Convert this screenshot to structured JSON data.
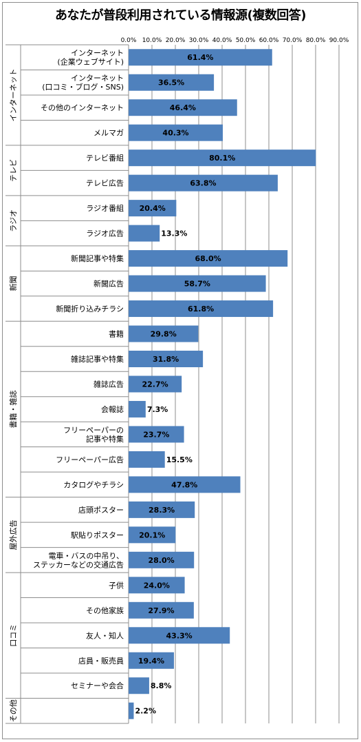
{
  "chart_data": {
    "type": "bar",
    "orientation": "horizontal",
    "title": "あなたが普段利用されている情報源(複数回答)",
    "xlim": [
      0,
      90
    ],
    "x_ticks": [
      "0.0%",
      "10.0%",
      "20.0%",
      "30.0%",
      "40.0%",
      "50.0%",
      "60.0%",
      "70.0%",
      "80.0%",
      "90.0%"
    ],
    "bar_color": "#4f81bd",
    "groups": [
      {
        "name": "インターネット",
        "start": 0,
        "count": 4
      },
      {
        "name": "テレビ",
        "start": 4,
        "count": 2
      },
      {
        "name": "ラジオ",
        "start": 6,
        "count": 2
      },
      {
        "name": "新聞",
        "start": 8,
        "count": 3
      },
      {
        "name": "書籍・雑誌",
        "start": 11,
        "count": 7
      },
      {
        "name": "屋外広告",
        "start": 18,
        "count": 3
      },
      {
        "name": "口コミ",
        "start": 21,
        "count": 5
      },
      {
        "name": "その他",
        "start": 26,
        "count": 1
      }
    ],
    "categories": [
      [
        "インターネット",
        "(企業ウェブサイト)"
      ],
      [
        "インターネット",
        "(口コミ・ブログ・SNS)"
      ],
      [
        "その他のインターネット"
      ],
      [
        "メルマガ"
      ],
      [
        "テレビ番組"
      ],
      [
        "テレビ広告"
      ],
      [
        "ラジオ番組"
      ],
      [
        "ラジオ広告"
      ],
      [
        "新聞記事や特集"
      ],
      [
        "新聞広告"
      ],
      [
        "新聞折り込みチラシ"
      ],
      [
        "書籍"
      ],
      [
        "雑誌記事や特集"
      ],
      [
        "雑誌広告"
      ],
      [
        "会報誌"
      ],
      [
        "フリーペーパーの",
        "記事や特集"
      ],
      [
        "フリーペーパー広告"
      ],
      [
        "カタログやチラシ"
      ],
      [
        "店頭ポスター"
      ],
      [
        "駅貼りポスター"
      ],
      [
        "電車・バスの中吊り、",
        "ステッカーなどの交通広告"
      ],
      [
        "子供"
      ],
      [
        "その他家族"
      ],
      [
        "友人・知人"
      ],
      [
        "店員・販売員"
      ],
      [
        "セミナーや会合"
      ],
      [
        ""
      ]
    ],
    "values": [
      61.4,
      36.5,
      46.4,
      40.3,
      80.1,
      63.8,
      20.4,
      13.3,
      68.0,
      58.7,
      61.8,
      29.8,
      31.8,
      22.7,
      7.3,
      23.7,
      15.5,
      47.8,
      28.3,
      20.1,
      28.0,
      24.0,
      27.9,
      43.3,
      19.4,
      8.8,
      2.2
    ],
    "value_labels": [
      "61.4%",
      "36.5%",
      "46.4%",
      "40.3%",
      "80.1%",
      "63.8%",
      "20.4%",
      "13.3%",
      "68.0%",
      "58.7%",
      "61.8%",
      "29.8%",
      "31.8%",
      "22.7%",
      "7.3%",
      "23.7%",
      "15.5%",
      "47.8%",
      "28.3%",
      "20.1%",
      "28.0%",
      "24.0%",
      "27.9%",
      "43.3%",
      "19.4%",
      "8.8%",
      "2.2%"
    ]
  }
}
